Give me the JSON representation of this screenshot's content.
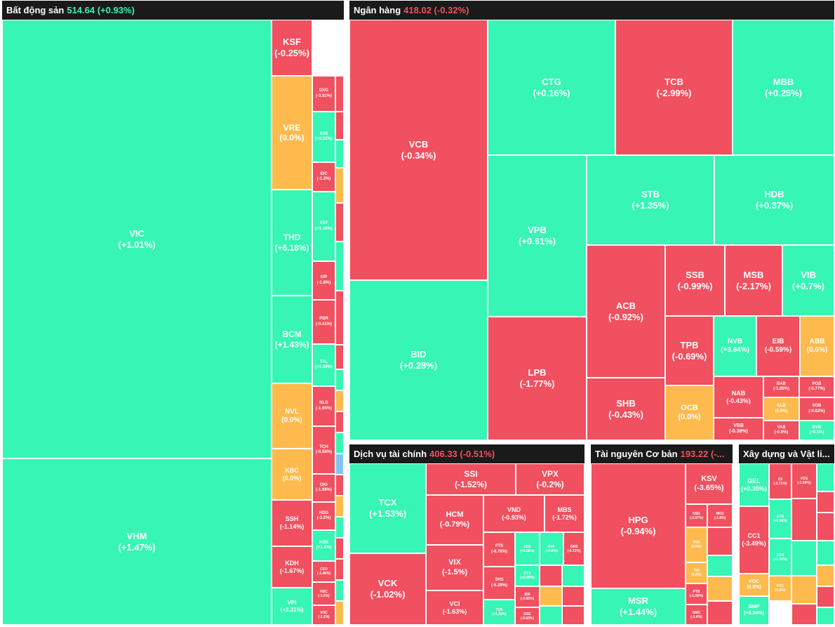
{
  "colors": {
    "up": "#37f5b4",
    "down": "#f0505f",
    "flat": "#ffba4d",
    "header_bg": "#1a1a1a",
    "header_up": "#37f5b4",
    "header_down": "#f2505f"
  },
  "sectors": [
    {
      "name": "Bất động sản",
      "value": "514.64 (+0.93%)",
      "dir": "up"
    },
    {
      "name": "Ngân hàng",
      "value": "418.02 (-0.32%)",
      "dir": "dn"
    },
    {
      "name": "Dịch vụ tài chính",
      "value": "406.33 (-0.51%)",
      "dir": "dn"
    },
    {
      "name": "Tài nguyên Cơ bản",
      "value": "193.22 (-...",
      "dir": "dn"
    },
    {
      "name": "Xây dựng và Vật li...",
      "value": "",
      "dir": "dn"
    }
  ],
  "bds": [
    {
      "s": "VIC",
      "p": "(+1.01%)",
      "c": "g"
    },
    {
      "s": "VHM",
      "p": "(+1.47%)",
      "c": "g"
    },
    {
      "s": "KSF",
      "p": "(-0.25%)",
      "c": "r"
    },
    {
      "s": "VRE",
      "p": "(0.0%)",
      "c": "y"
    },
    {
      "s": "THD",
      "p": "(+6.18%)",
      "c": "g"
    },
    {
      "s": "BCM",
      "p": "(+1.43%)",
      "c": "g"
    },
    {
      "s": "NVL",
      "p": "(0.0%)",
      "c": "y"
    },
    {
      "s": "KBC",
      "p": "(0.0%)",
      "c": "y"
    },
    {
      "s": "SSH",
      "p": "(-1.14%)",
      "c": "r"
    },
    {
      "s": "KDH",
      "p": "(-1.67%)",
      "c": "r"
    },
    {
      "s": "VPI",
      "p": "(+2.31%)",
      "c": "g"
    },
    {
      "s": "DXG",
      "p": "(-3.91%)",
      "c": "r"
    },
    {
      "s": "SJS",
      "p": "(+0.31%)",
      "c": "g"
    },
    {
      "s": "IDC",
      "p": "(-1.2%)",
      "c": "r"
    },
    {
      "s": "VSF",
      "p": "(+1.18%)",
      "c": "g"
    },
    {
      "s": "SIP",
      "p": "(-1.8%)",
      "c": "r"
    },
    {
      "s": "PDR",
      "p": "(-0.41%)",
      "c": "r"
    },
    {
      "s": "TAL",
      "p": "(+1.58%)",
      "c": "g"
    },
    {
      "s": "NLG",
      "p": "(-1.65%)",
      "c": "r"
    },
    {
      "s": "TCH",
      "p": "(-0.58%)",
      "c": "r"
    },
    {
      "s": "DIG",
      "p": "(-1.98%)",
      "c": "r"
    },
    {
      "s": "HDG",
      "p": "(-3.2%)",
      "c": "r"
    },
    {
      "s": "KOS",
      "p": "(+1.1%)",
      "c": "g"
    },
    {
      "s": "CEO",
      "p": "(-1.46%)",
      "c": "r"
    },
    {
      "s": "HDC",
      "p": "(-3.0%)",
      "c": "r"
    },
    {
      "s": "VHC",
      "p": "(-2.1%)",
      "c": "r"
    }
  ],
  "bank": [
    {
      "s": "VCB",
      "p": "(-0.34%)",
      "c": "r"
    },
    {
      "s": "BID",
      "p": "(+0.28%)",
      "c": "g"
    },
    {
      "s": "CTG",
      "p": "(+0.16%)",
      "c": "g"
    },
    {
      "s": "TCB",
      "p": "(-2.99%)",
      "c": "r"
    },
    {
      "s": "MBB",
      "p": "(+0.25%)",
      "c": "g"
    },
    {
      "s": "VPB",
      "p": "(+0.61%)",
      "c": "g"
    },
    {
      "s": "STB",
      "p": "(+1.35%)",
      "c": "g"
    },
    {
      "s": "HDB",
      "p": "(+0.37%)",
      "c": "g"
    },
    {
      "s": "LPB",
      "p": "(-1.77%)",
      "c": "r"
    },
    {
      "s": "ACB",
      "p": "(-0.92%)",
      "c": "r"
    },
    {
      "s": "SHB",
      "p": "(-0.43%)",
      "c": "r"
    },
    {
      "s": "SSB",
      "p": "(-0.99%)",
      "c": "r"
    },
    {
      "s": "MSB",
      "p": "(-2.17%)",
      "c": "r"
    },
    {
      "s": "VIB",
      "p": "(+0.7%)",
      "c": "g"
    },
    {
      "s": "TPB",
      "p": "(-0.69%)",
      "c": "r"
    },
    {
      "s": "NVB",
      "p": "(+3.64%)",
      "c": "g"
    },
    {
      "s": "EIB",
      "p": "(-0.59%)",
      "c": "r"
    },
    {
      "s": "ABB",
      "p": "(0.0%)",
      "c": "y"
    },
    {
      "s": "OCB",
      "p": "(0.0%)",
      "c": "y"
    },
    {
      "s": "NAB",
      "p": "(-0.43%)",
      "c": "r"
    },
    {
      "s": "BAB",
      "p": "(-1.85%)",
      "c": "r"
    },
    {
      "s": "PGB",
      "p": "(-0.77%)",
      "c": "r"
    },
    {
      "s": "VBB",
      "p": "(-0.39%)",
      "c": "r"
    },
    {
      "s": "KLB",
      "p": "(0.0%)",
      "c": "y"
    },
    {
      "s": "SGB",
      "p": "(-0.82%)",
      "c": "r"
    },
    {
      "s": "VAB",
      "p": "(-0.9%)",
      "c": "r"
    },
    {
      "s": "BVB",
      "p": "(+0.5%)",
      "c": "g"
    }
  ],
  "fin": [
    {
      "s": "TCX",
      "p": "(+1.53%)",
      "c": "g"
    },
    {
      "s": "VCK",
      "p": "(-1.02%)",
      "c": "r"
    },
    {
      "s": "SSI",
      "p": "(-1.52%)",
      "c": "r"
    },
    {
      "s": "VPX",
      "p": "(-0.2%)",
      "c": "r"
    },
    {
      "s": "HCM",
      "p": "(-0.79%)",
      "c": "r"
    },
    {
      "s": "VND",
      "p": "(-0.93%)",
      "c": "r"
    },
    {
      "s": "MBS",
      "p": "(-1.72%)",
      "c": "r"
    },
    {
      "s": "VIX",
      "p": "(-1.5%)",
      "c": "r"
    },
    {
      "s": "VCI",
      "p": "(-1.63%)",
      "c": "r"
    },
    {
      "s": "FTS",
      "p": "(-0.76%)",
      "c": "r"
    },
    {
      "s": "SHS",
      "p": "(-5.29%)",
      "c": "r"
    },
    {
      "s": "TVB",
      "p": "(+1.32%)",
      "c": "g"
    },
    {
      "s": "VDS",
      "p": "(+0.58%)",
      "c": "g"
    },
    {
      "s": "EVF",
      "p": "(+0.8%)",
      "c": "g"
    },
    {
      "s": "ORS",
      "p": "(-0.73%)",
      "c": "r"
    },
    {
      "s": "CTS",
      "p": "(+0.98%)",
      "c": "g"
    },
    {
      "s": "BSI",
      "p": "(-0.93%)",
      "c": "r"
    },
    {
      "s": "DSE",
      "p": "(-0.63%)",
      "c": "r"
    }
  ],
  "res": [
    {
      "s": "HPG",
      "p": "(-0.94%)",
      "c": "r"
    },
    {
      "s": "MSR",
      "p": "(+1.44%)",
      "c": "g"
    },
    {
      "s": "KSV",
      "p": "(-3.65%)",
      "c": "r"
    },
    {
      "s": "HSG",
      "p": "(-2.07%)",
      "c": "r"
    },
    {
      "s": "NKG",
      "p": "(-1.8%)",
      "c": "r"
    },
    {
      "s": "TVN",
      "p": "(0.0%)",
      "c": "y"
    },
    {
      "s": "TNI",
      "p": "(0.0%)",
      "c": "y"
    },
    {
      "s": "PTB",
      "p": "(-1.09%)",
      "c": "r"
    },
    {
      "s": "SMC",
      "p": "(-1.4%)",
      "c": "r"
    }
  ],
  "con": [
    {
      "s": "GEL",
      "p": "(+0.35%)",
      "c": "g"
    },
    {
      "s": "CC1",
      "p": "(-3.49%)",
      "c": "r"
    },
    {
      "s": "VGC",
      "p": "(0.0%)",
      "c": "y"
    },
    {
      "s": "BMP",
      "p": "(+0.54%)",
      "c": "g"
    },
    {
      "s": "CII",
      "p": "(-2.71%)",
      "c": "r"
    },
    {
      "s": "CTD",
      "p": "(+0.36%)",
      "c": "g"
    },
    {
      "s": "SKG",
      "p": "(+1.36%)",
      "c": "g"
    },
    {
      "s": "PC1",
      "p": "(0.0%)",
      "c": "y"
    },
    {
      "s": "VCG",
      "p": "(-1.59%)",
      "c": "r"
    }
  ]
}
